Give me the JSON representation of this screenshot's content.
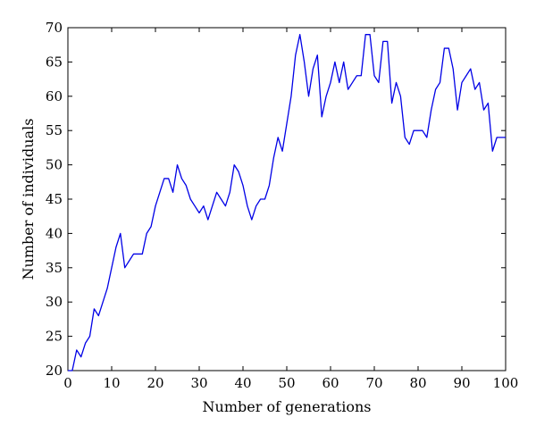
{
  "chart_data": {
    "type": "line",
    "xlabel": "Number of generations",
    "ylabel": "Number of individuals",
    "xlim": [
      0,
      100
    ],
    "ylim": [
      20,
      70
    ],
    "xticks": [
      0,
      10,
      20,
      30,
      40,
      50,
      60,
      70,
      80,
      90,
      100
    ],
    "yticks": [
      20,
      25,
      30,
      35,
      40,
      45,
      50,
      55,
      60,
      65,
      70
    ],
    "grid": false,
    "line_color": "#0000e6",
    "x": [
      0,
      1,
      2,
      3,
      4,
      5,
      6,
      7,
      8,
      9,
      10,
      11,
      12,
      13,
      14,
      15,
      16,
      17,
      18,
      19,
      20,
      21,
      22,
      23,
      24,
      25,
      26,
      27,
      28,
      29,
      30,
      31,
      32,
      33,
      34,
      35,
      36,
      37,
      38,
      39,
      40,
      41,
      42,
      43,
      44,
      45,
      46,
      47,
      48,
      49,
      50,
      51,
      52,
      53,
      54,
      55,
      56,
      57,
      58,
      59,
      60,
      61,
      62,
      63,
      64,
      65,
      66,
      67,
      68,
      69,
      70,
      71,
      72,
      73,
      74,
      75,
      76,
      77,
      78,
      79,
      80,
      81,
      82,
      83,
      84,
      85,
      86,
      87,
      88,
      89,
      90,
      91,
      92,
      93,
      94,
      95,
      96,
      97,
      98,
      99,
      100
    ],
    "y": [
      20,
      20,
      23,
      22,
      24,
      25,
      29,
      28,
      30,
      32,
      35,
      38,
      40,
      35,
      36,
      37,
      37,
      37,
      40,
      41,
      44,
      46,
      48,
      48,
      46,
      50,
      48,
      47,
      45,
      44,
      43,
      44,
      42,
      44,
      46,
      45,
      44,
      46,
      50,
      49,
      47,
      44,
      42,
      44,
      45,
      45,
      47,
      51,
      54,
      52,
      56,
      60,
      66,
      69,
      65,
      60,
      64,
      66,
      57,
      60,
      62,
      65,
      62,
      65,
      61,
      62,
      63,
      63,
      69,
      69,
      63,
      62,
      68,
      68,
      59,
      62,
      60,
      54,
      53,
      55,
      55,
      55,
      54,
      58,
      61,
      62,
      67,
      67,
      64,
      58,
      62,
      63,
      64,
      61,
      62,
      58,
      59,
      52,
      54,
      54,
      54
    ]
  }
}
